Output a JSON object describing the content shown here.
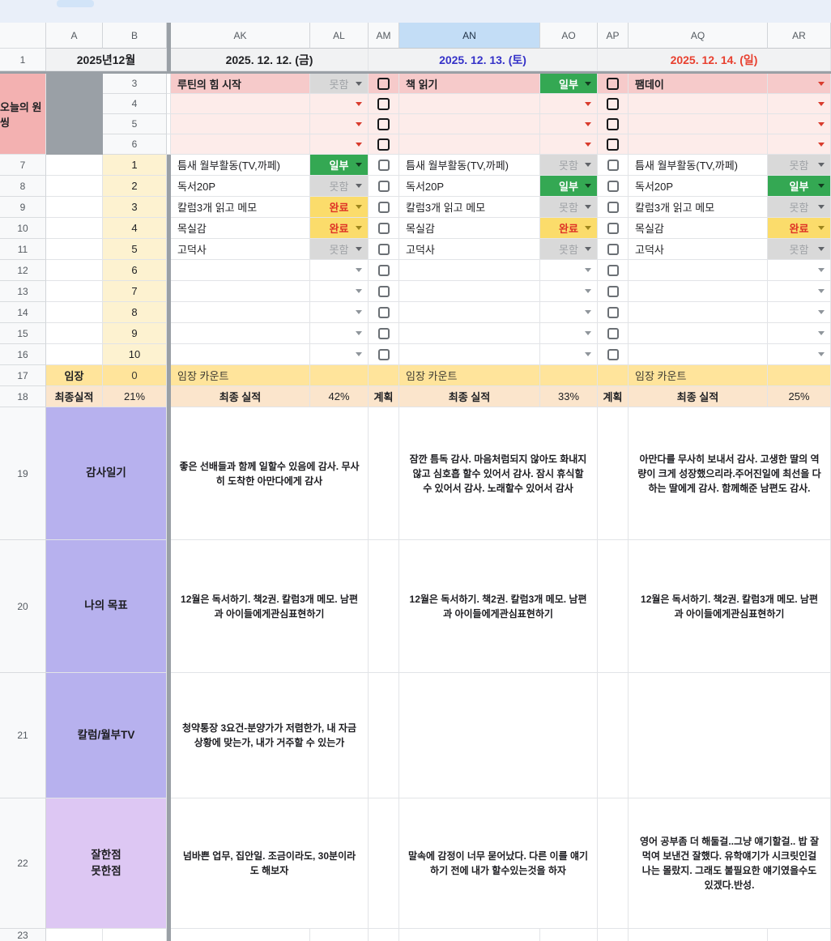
{
  "columns": [
    "A",
    "B",
    "AK",
    "AL",
    "AM",
    "AN",
    "AO",
    "AP",
    "AQ",
    "AR"
  ],
  "selected_column": "AN",
  "row_numbers": [
    "1",
    "3",
    "4",
    "5",
    "6",
    "7",
    "8",
    "9",
    "10",
    "11",
    "12",
    "13",
    "14",
    "15",
    "16",
    "17",
    "18",
    "19",
    "20",
    "21",
    "22",
    "23"
  ],
  "dates": {
    "month": "2025년12월",
    "d1": "2025. 12. 12. (금)",
    "d2": "2025. 12. 13. (토)",
    "d3": "2025. 12. 14. (일)"
  },
  "onething": {
    "side_label": "오늘의 원씽",
    "titles": [
      "루틴의 힘 시작",
      "책 읽기",
      "팸데이"
    ],
    "statuses": [
      "못함",
      "일부",
      ""
    ]
  },
  "tasks": [
    {
      "num": "1",
      "name": "틈새 월부활동(TV,까페)",
      "status": [
        "일부",
        "못함",
        "못함"
      ]
    },
    {
      "num": "2",
      "name": "독서20P",
      "status": [
        "못함",
        "일부",
        "일부"
      ]
    },
    {
      "num": "3",
      "name": "칼럼3개 읽고 메모",
      "status": [
        "완료",
        "못함",
        "못함"
      ]
    },
    {
      "num": "4",
      "name": "목실감",
      "status": [
        "완료",
        "완료",
        "완료"
      ]
    },
    {
      "num": "5",
      "name": "고덕사",
      "status": [
        "못함",
        "못함",
        "못함"
      ]
    },
    {
      "num": "6",
      "name": "",
      "status": [
        "",
        "",
        ""
      ]
    },
    {
      "num": "7",
      "name": "",
      "status": [
        "",
        "",
        ""
      ]
    },
    {
      "num": "8",
      "name": "",
      "status": [
        "",
        "",
        ""
      ]
    },
    {
      "num": "9",
      "name": "",
      "status": [
        "",
        "",
        ""
      ]
    },
    {
      "num": "10",
      "name": "",
      "status": [
        "",
        "",
        ""
      ]
    }
  ],
  "visit": {
    "side_label": "임장",
    "side_value": "0",
    "count_label": "임장 카운트"
  },
  "result": {
    "side_label": "최종실적",
    "side_value": "21%",
    "final_label": "최종 실적",
    "plan_label": "계획",
    "values": [
      "42%",
      "33%",
      "25%"
    ]
  },
  "notes": [
    {
      "label": "감사일기",
      "texts": [
        "좋은 선배들과 함께 일할수 있음에 감사. 무사히 도착한 아만다에게 감사",
        "잠깐 틈독 감사. 마음처럼되지 않아도 화내지 않고 심호흡 할수 있어서 감사. 잠시 휴식할 수 있어서 감사. 노래할수 있어서 감사",
        "아만다를 무사히 보내서 감사. 고생한 딸의 역량이 크게 성장했으리라.주어진일에 최선을 다하는 딸에게 감사. 함께해준 남편도 감사."
      ]
    },
    {
      "label": "나의 목표",
      "texts": [
        "12월은 독서하기. 책2권. 칼럼3개 메모. 남편과 아이들에게관심표현하기",
        "12월은 독서하기. 책2권. 칼럼3개 메모. 남편과 아이들에게관심표현하기",
        "12월은 독서하기. 책2권. 칼럼3개 메모. 남편과 아이들에게관심표현하기"
      ]
    },
    {
      "label": "칼럼/월부TV",
      "texts": [
        "청약통장 3요건-분양가가 저렴한가, 내 자금 상황에 맞는가, 내가 거주할 수 있는가",
        "",
        ""
      ]
    },
    {
      "label_lines": [
        "잘한점",
        "못한점"
      ],
      "texts": [
        "넘바쁜 업무, 집안일. 조금이라도, 30분이라도 해보자",
        "말속에 감정이 너무 묻어났다. 다른 이를 얘기하기 전에 내가 할수있는것을 하자",
        "영어 공부좀 더 해둘걸..그냥 얘기할걸.. 밥 잘 먹여 보낸건 잘했다. 유학얘기가 시크릿인걸 나는 몰랐지. 그래도 불필요한 얘기였을수도 있겠다.반성."
      ]
    }
  ],
  "colors": {
    "chip-green": "#34a853",
    "chip-yellow": "#fbdc6b",
    "chip-gray": "#d9d9d9",
    "done-red": "#de3226",
    "arrow-red": "#d93b2d",
    "text-sat": "#3532c8",
    "text-sun": "#e8402f",
    "pink-strong": "#f3b1b1",
    "pink-row": "#f6caca",
    "pink-light": "#fdecea",
    "cream": "#fdf2d0",
    "yellow-row": "#ffe49b",
    "orange-row": "#fbe5cc",
    "purple-label": "#b7b1ee",
    "violet-label": "#ddc7f3",
    "header-selected": "#c3ddf6",
    "toolbar-bg": "#e9eff9",
    "toolbar-chip": "#d2e4f8"
  }
}
